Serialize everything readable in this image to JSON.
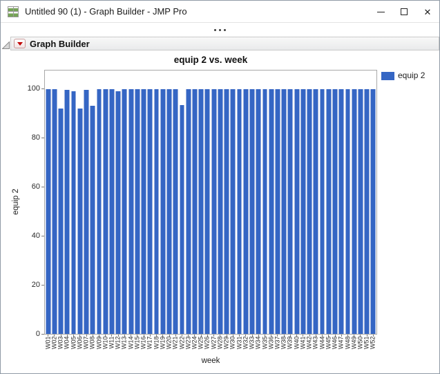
{
  "window": {
    "title": "Untitled 90 (1) - Graph Builder - JMP Pro",
    "controls": {
      "minimize": "minimize",
      "maximize": "maximize",
      "close": "close"
    }
  },
  "report": {
    "outline_title": "Graph Builder"
  },
  "chart_data": {
    "type": "bar",
    "title": "equip 2 vs. week",
    "xlabel": "week",
    "ylabel": "equip 2",
    "ylim": [
      0,
      107.5
    ],
    "yticks": [
      0,
      20,
      40,
      60,
      80,
      100
    ],
    "grid": false,
    "legend": {
      "position": "top-right-outside",
      "entries": [
        {
          "label": "equip 2",
          "color": "#3566c4"
        }
      ]
    },
    "categories": [
      "W01",
      "W02",
      "W03",
      "W04",
      "W05",
      "W06",
      "W07",
      "W08",
      "W09",
      "W10",
      "W11",
      "W12",
      "W13",
      "W14",
      "W15",
      "W16",
      "W17",
      "W18",
      "W19",
      "W20",
      "W21",
      "W22",
      "W23",
      "W24",
      "W25",
      "W26",
      "W27",
      "W28",
      "W29",
      "W30",
      "W31",
      "W32",
      "W33",
      "W34",
      "W35",
      "W36",
      "W37",
      "W38",
      "W39",
      "W40",
      "W41",
      "W42",
      "W43",
      "W44",
      "W45",
      "W46",
      "W47",
      "W48",
      "W49",
      "W50",
      "W51",
      "W52"
    ],
    "values": [
      100,
      100,
      92,
      99.5,
      99,
      92,
      99.5,
      93,
      100,
      100,
      100,
      99,
      100,
      100,
      100,
      100,
      100,
      100,
      100,
      100,
      100,
      93.5,
      100,
      100,
      100,
      100,
      100,
      100,
      100,
      100,
      100,
      100,
      100,
      100,
      100,
      100,
      100,
      100,
      100,
      100,
      100,
      100,
      100,
      100,
      100,
      100,
      100,
      100,
      100,
      100,
      100,
      100
    ]
  },
  "colors": {
    "bar_fill": "#3566c4",
    "bar_edge": "#9ab0de",
    "frame_border": "#a8a8a8",
    "red_triangle": "#c00000"
  }
}
